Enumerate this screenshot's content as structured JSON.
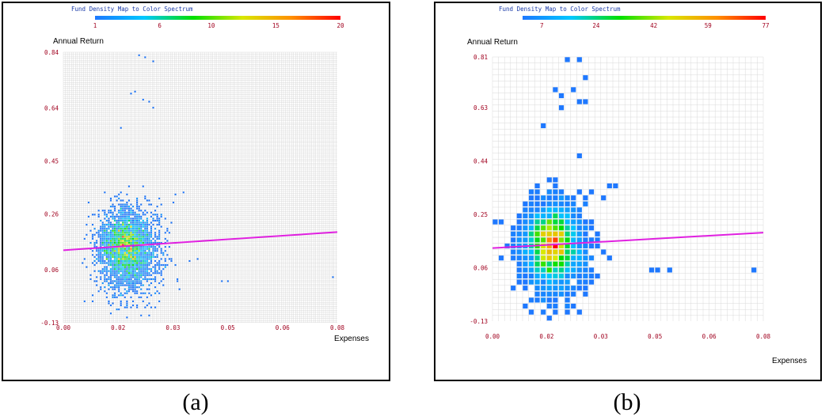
{
  "colors": {
    "frame": "#000000",
    "grid": "#d9d9d9",
    "tick_label": "#a0001e",
    "legend_title": "#1a3aa8",
    "trend_line": "#e020e0",
    "spectrum": [
      "#1e78ff",
      "#00c8ff",
      "#00e000",
      "#d8e800",
      "#ff9000",
      "#ff0000"
    ]
  },
  "chart_data": [
    {
      "type": "heatmap",
      "panel_caption": "(a)",
      "legend_title": "Fund Density Map to Color Spectrum",
      "legend_ticks": [
        "1",
        "6",
        "10",
        "15",
        "20"
      ],
      "density_range": [
        1,
        20
      ],
      "ylabel": "Annual Return",
      "xlabel": "Expenses",
      "x_ticks": [
        "0.00",
        "0.02",
        "0.03",
        "0.05",
        "0.06",
        "0.08"
      ],
      "y_ticks": [
        "0.84",
        "0.64",
        "0.45",
        "0.26",
        "0.06",
        "-0.13"
      ],
      "xlim": [
        0.0,
        0.08
      ],
      "ylim": [
        -0.13,
        0.84
      ],
      "grid": true,
      "trend_line": {
        "x": [
          0.0,
          0.08
        ],
        "y": [
          0.13,
          0.195
        ]
      },
      "clusters": [
        {
          "x": 0.019,
          "y": 0.13,
          "sx": 0.0045,
          "sy": 0.075,
          "n": 2600,
          "weight": 1.0
        },
        {
          "x": 0.017,
          "y": 0.16,
          "sx": 0.003,
          "sy": 0.05,
          "n": 700,
          "weight": 1.0
        }
      ],
      "outliers": [
        {
          "x": 0.022,
          "y": 0.83
        },
        {
          "x": 0.024,
          "y": 0.82
        },
        {
          "x": 0.026,
          "y": 0.81
        },
        {
          "x": 0.021,
          "y": 0.7
        },
        {
          "x": 0.02,
          "y": 0.69
        },
        {
          "x": 0.023,
          "y": 0.67
        },
        {
          "x": 0.025,
          "y": 0.66
        },
        {
          "x": 0.026,
          "y": 0.64
        },
        {
          "x": 0.017,
          "y": 0.57
        },
        {
          "x": 0.033,
          "y": 0.33
        },
        {
          "x": 0.035,
          "y": 0.34
        },
        {
          "x": 0.032,
          "y": 0.3
        },
        {
          "x": 0.037,
          "y": 0.09
        },
        {
          "x": 0.039,
          "y": 0.1
        },
        {
          "x": 0.046,
          "y": 0.02
        },
        {
          "x": 0.048,
          "y": 0.02
        },
        {
          "x": 0.079,
          "y": 0.03
        },
        {
          "x": 0.028,
          "y": 0.24
        }
      ]
    },
    {
      "type": "heatmap",
      "panel_caption": "(b)",
      "legend_title": "Fund Density Map to Color Spectrum",
      "legend_ticks": [
        "7",
        "24",
        "42",
        "59",
        "77"
      ],
      "density_range": [
        1,
        77
      ],
      "ylabel": "Annual Return",
      "xlabel": "Expenses",
      "x_ticks": [
        "0.00",
        "0.02",
        "0.03",
        "0.05",
        "0.06",
        "0.08"
      ],
      "y_ticks": [
        "0.81",
        "0.63",
        "0.44",
        "0.25",
        "0.06",
        "-0.13"
      ],
      "xlim": [
        0.0,
        0.08
      ],
      "ylim": [
        -0.13,
        0.81
      ],
      "grid": true,
      "trend_line": {
        "x": [
          0.0,
          0.08
        ],
        "y": [
          0.13,
          0.185
        ]
      },
      "clusters": [
        {
          "x": 0.018,
          "y": 0.13,
          "sx": 0.0045,
          "sy": 0.075,
          "n": 2600,
          "weight": 1.0
        },
        {
          "x": 0.017,
          "y": 0.16,
          "sx": 0.003,
          "sy": 0.05,
          "n": 700,
          "weight": 1.0
        }
      ],
      "outliers": [
        {
          "x": 0.023,
          "y": 0.8
        },
        {
          "x": 0.026,
          "y": 0.79
        },
        {
          "x": 0.027,
          "y": 0.74
        },
        {
          "x": 0.019,
          "y": 0.69
        },
        {
          "x": 0.021,
          "y": 0.68
        },
        {
          "x": 0.024,
          "y": 0.69
        },
        {
          "x": 0.026,
          "y": 0.66
        },
        {
          "x": 0.027,
          "y": 0.64
        },
        {
          "x": 0.021,
          "y": 0.63
        },
        {
          "x": 0.015,
          "y": 0.56
        },
        {
          "x": 0.035,
          "y": 0.34
        },
        {
          "x": 0.037,
          "y": 0.34
        },
        {
          "x": 0.033,
          "y": 0.3
        },
        {
          "x": 0.047,
          "y": 0.04
        },
        {
          "x": 0.049,
          "y": 0.04
        },
        {
          "x": 0.052,
          "y": 0.04
        },
        {
          "x": 0.078,
          "y": 0.05
        },
        {
          "x": 0.0,
          "y": 0.22
        }
      ]
    }
  ]
}
